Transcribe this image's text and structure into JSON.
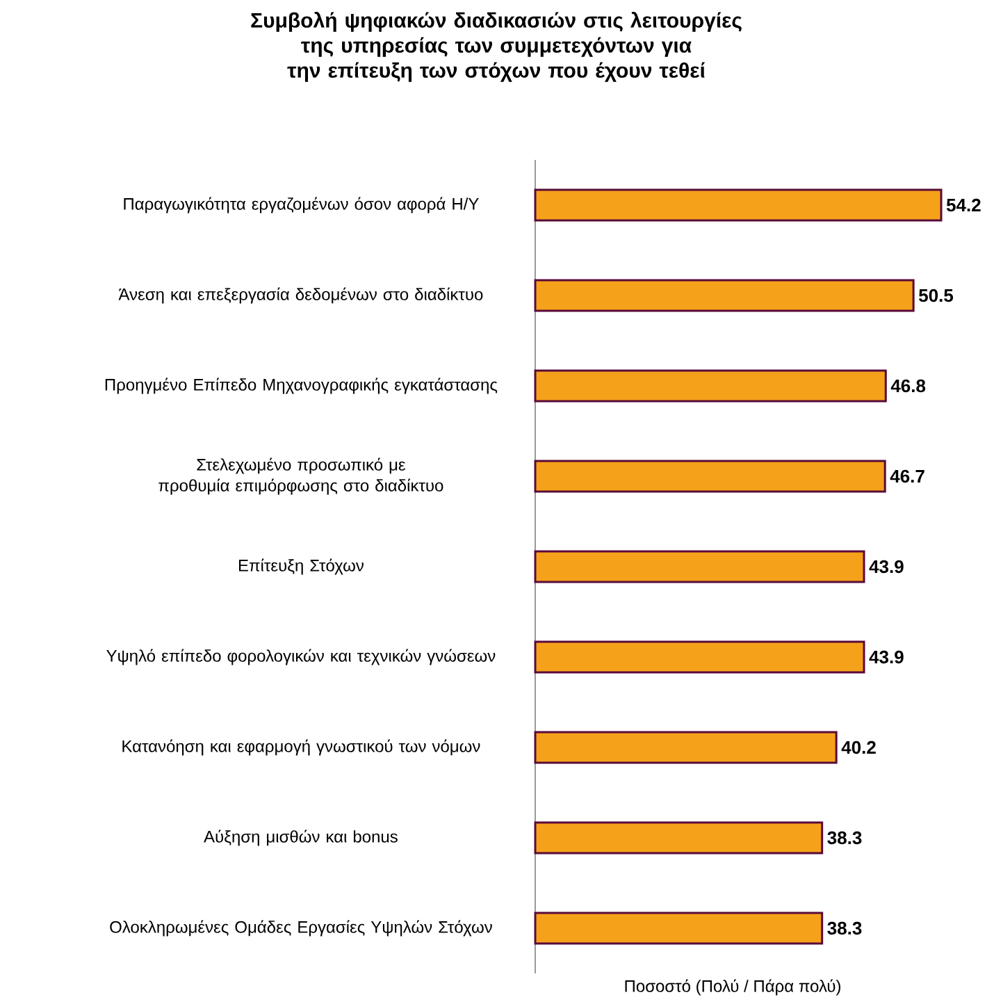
{
  "chart_data": {
    "type": "bar",
    "orientation": "horizontal",
    "title": "Συμβολή ψηφιακών διαδικασιών στις λειτουργίες της υπηρεσίας των συμμετεχόντων για την επίτευξη των στόχων που έχουν τεθεί",
    "xlabel": "Ποσοστό (Πολύ / Πάρα πολύ)",
    "categories": [
      "Παραγωγικότητα εργαζομένων όσον αφορά Η/Υ",
      "Άνεση και επεξεργασία δεδομένων στο διαδίκτυο",
      "Προηγμένο Επίπεδο Μηχανογραφικής εγκατάστασης",
      "Στελεχωμένο προσωπικό με προθυμία επιμόρφωσης στο διαδίκτυο",
      "Επίτευξη Στόχων",
      "Υψηλό επίπεδο φορολογικών και τεχνικών γνώσεων",
      "Κατανόηση  και εφαρμογή γνωστικού των νόμων",
      "Αύξηση μισθών και bonus",
      "Ολοκληρωμένες Ομάδες Εργασίες Υψηλών Στόχων"
    ],
    "values": [
      54.2,
      50.5,
      46.8,
      46.7,
      43.9,
      43.9,
      40.2,
      38.3,
      38.3
    ],
    "color": "#f5a21a",
    "data_labels": true
  }
}
